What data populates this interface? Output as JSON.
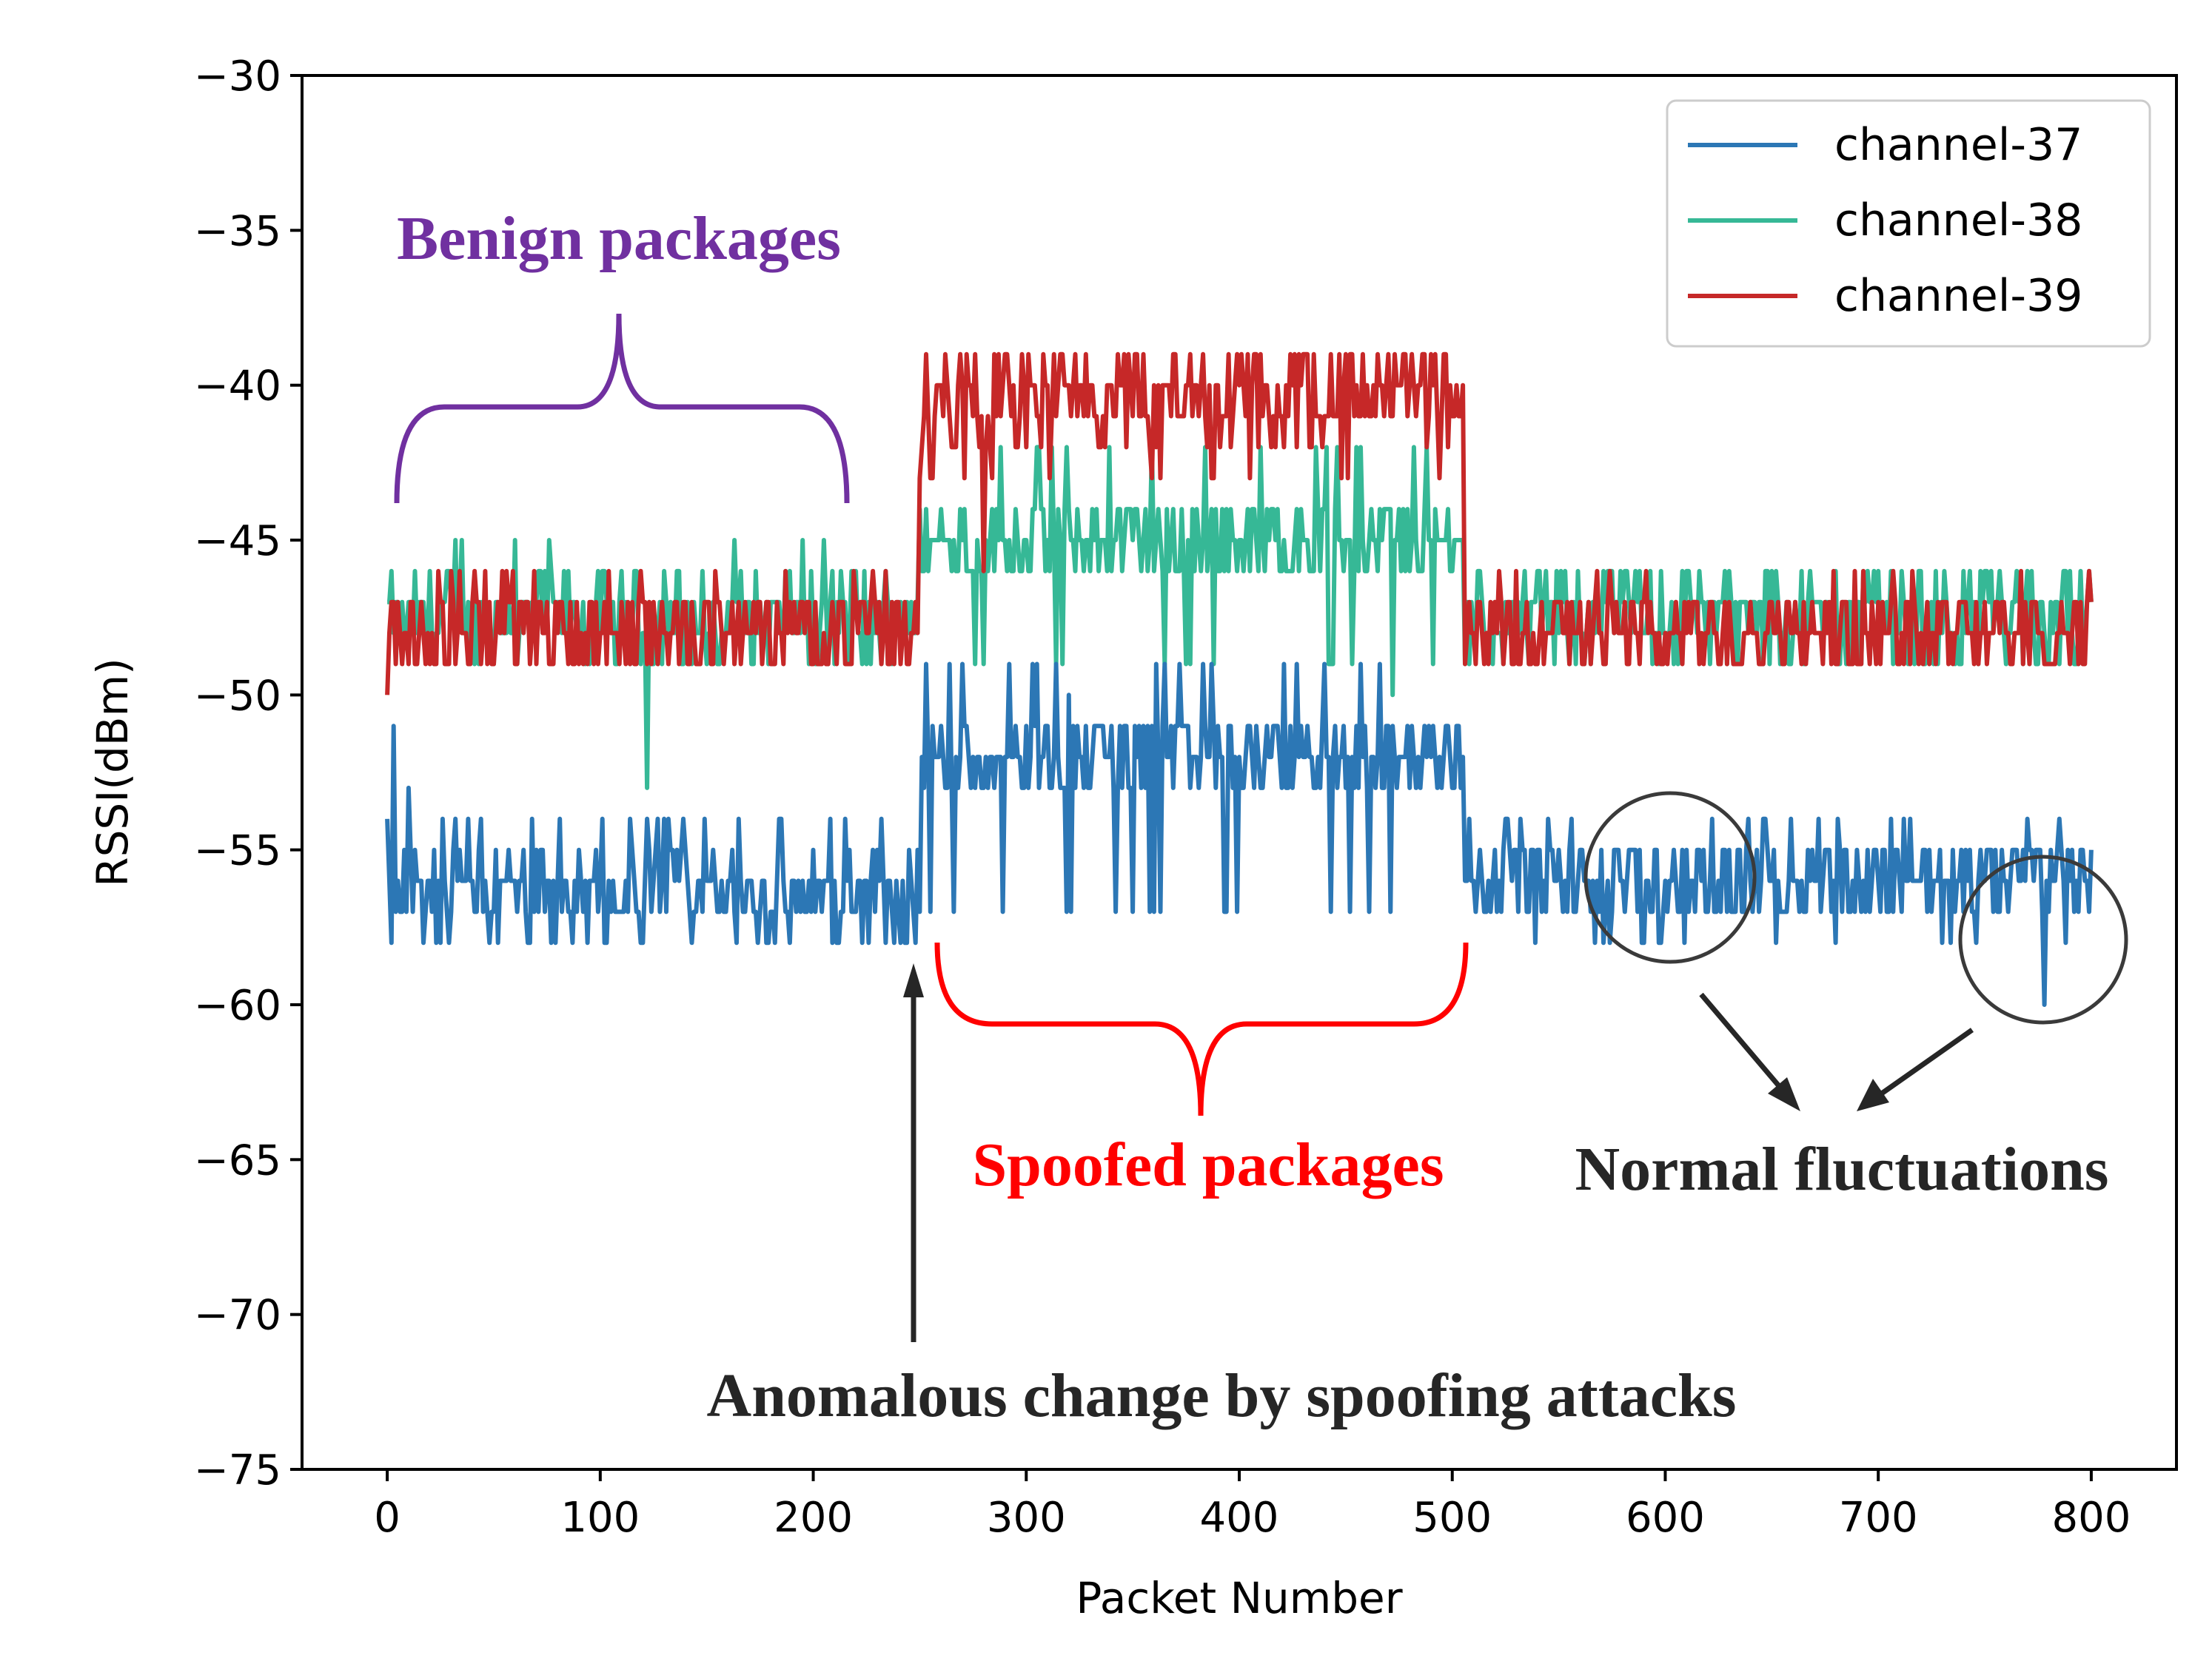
{
  "chart_data": {
    "type": "line",
    "xlabel": "Packet Number",
    "ylabel": "RSSI(dBm)",
    "xlim": [
      -40,
      840
    ],
    "ylim": [
      -75,
      -30
    ],
    "xticks": [
      0,
      100,
      200,
      300,
      400,
      500,
      600,
      700,
      800
    ],
    "yticks": [
      -75,
      -70,
      -65,
      -60,
      -55,
      -50,
      -45,
      -40,
      -35,
      -30
    ],
    "xtick_labels": [
      "0",
      "100",
      "200",
      "300",
      "400",
      "500",
      "600",
      "700",
      "800"
    ],
    "ytick_labels": [
      "−75",
      "−70",
      "−65",
      "−60",
      "−55",
      "−50",
      "−45",
      "−40",
      "−35",
      "−30"
    ],
    "grid": false,
    "legend_position": "top-right",
    "series": [
      {
        "name": "channel-37",
        "color": "#2c77b5",
        "segments": [
          {
            "x_start": 0,
            "x_end": 248,
            "base": -56.5,
            "low": -58,
            "high": -54
          },
          {
            "x_start": 250,
            "x_end": 505,
            "base": -52,
            "low": -57,
            "high": -49
          },
          {
            "x_start": 507,
            "x_end": 800,
            "base": -56,
            "low": -58,
            "high": -54
          }
        ],
        "points": [
          [
            0,
            -54
          ],
          [
            3,
            -51
          ],
          [
            10,
            -53
          ],
          [
            20,
            -56
          ],
          [
            60,
            -56
          ],
          [
            110,
            -57
          ],
          [
            150,
            -56
          ],
          [
            248,
            -58
          ],
          [
            252,
            -53
          ],
          [
            320,
            -50
          ],
          [
            400,
            -52
          ],
          [
            470,
            -51
          ],
          [
            505,
            -52
          ],
          [
            507,
            -56
          ],
          [
            580,
            -56
          ],
          [
            590,
            -58
          ],
          [
            600,
            -56
          ],
          [
            760,
            -56
          ],
          [
            770,
            -54
          ],
          [
            778,
            -60
          ],
          [
            782,
            -56
          ],
          [
            800,
            -55
          ]
        ]
      },
      {
        "name": "channel-38",
        "color": "#36b896",
        "segments": [
          {
            "x_start": 0,
            "x_end": 248,
            "base": -47.5,
            "low": -49,
            "high": -45
          },
          {
            "x_start": 250,
            "x_end": 505,
            "base": -45,
            "low": -49,
            "high": -42
          },
          {
            "x_start": 507,
            "x_end": 800,
            "base": -47.5,
            "low": -49,
            "high": -46
          }
        ],
        "points": [
          [
            0,
            -47
          ],
          [
            40,
            -47
          ],
          [
            122,
            -53
          ],
          [
            130,
            -46
          ],
          [
            248,
            -48
          ],
          [
            252,
            -46
          ],
          [
            320,
            -44
          ],
          [
            400,
            -45
          ],
          [
            472,
            -50
          ],
          [
            505,
            -45
          ],
          [
            507,
            -47
          ],
          [
            600,
            -48
          ],
          [
            700,
            -46
          ],
          [
            800,
            -47
          ]
        ]
      },
      {
        "name": "channel-39",
        "color": "#c62828",
        "segments": [
          {
            "x_start": 0,
            "x_end": 248,
            "base": -47.8,
            "low": -49,
            "high": -46
          },
          {
            "x_start": 250,
            "x_end": 505,
            "base": -40.5,
            "low": -43,
            "high": -39
          },
          {
            "x_start": 507,
            "x_end": 800,
            "base": -47.8,
            "low": -49,
            "high": -46
          }
        ],
        "points": [
          [
            0,
            -50
          ],
          [
            3,
            -47
          ],
          [
            100,
            -48
          ],
          [
            248,
            -47
          ],
          [
            252,
            -41
          ],
          [
            270,
            -40
          ],
          [
            280,
            -46
          ],
          [
            320,
            -40
          ],
          [
            400,
            -40
          ],
          [
            500,
            -41
          ],
          [
            505,
            -40
          ],
          [
            507,
            -48
          ],
          [
            600,
            -48
          ],
          [
            700,
            -47
          ],
          [
            800,
            -47
          ]
        ]
      }
    ],
    "annotations": [
      {
        "text": "Benign packages",
        "color": "#7030a0"
      },
      {
        "text": "Spoofed packages",
        "color": "#ff0000"
      },
      {
        "text": "Normal fluctuations",
        "color": "#262626"
      },
      {
        "text": "Anomalous change by spoofing attacks",
        "color": "#262626"
      }
    ]
  }
}
